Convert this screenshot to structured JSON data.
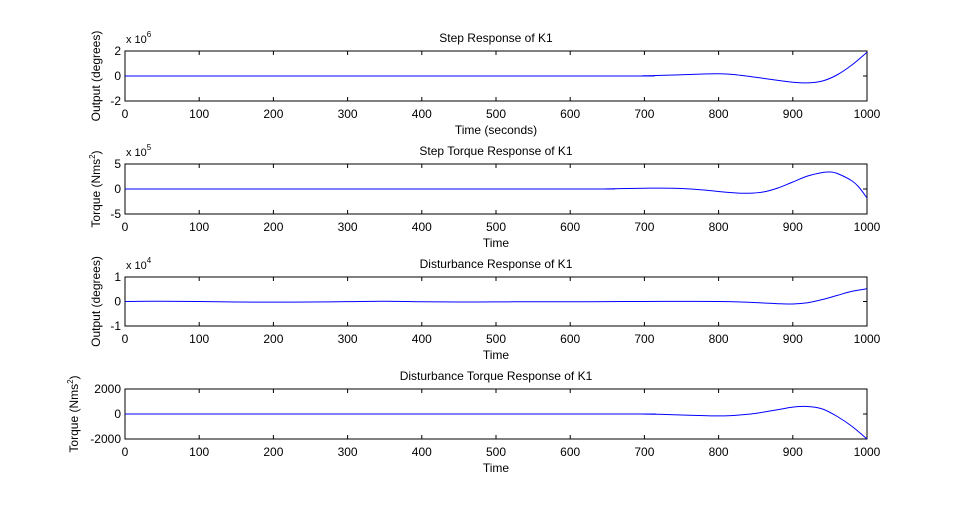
{
  "chart_data": [
    {
      "type": "line",
      "title": "Step Response of K1",
      "xlabel": "Time (seconds)",
      "ylabel": "Output (degrees)",
      "ylabel_sup": "",
      "ylabel_tail": "",
      "multiplier_base": "x 10",
      "multiplier_exp": "6",
      "xlim": [
        0,
        1000
      ],
      "ylim": [
        -2,
        2
      ],
      "xticks": [
        0,
        100,
        200,
        300,
        400,
        500,
        600,
        700,
        800,
        900,
        1000
      ],
      "yticks": [
        -2,
        0,
        2
      ],
      "line_color": "#0000ff",
      "x": [
        0,
        650,
        700,
        750,
        780,
        800,
        820,
        850,
        880,
        900,
        920,
        940,
        960,
        980,
        1000
      ],
      "y": [
        0,
        0,
        0.02,
        0.1,
        0.16,
        0.18,
        0.12,
        -0.1,
        -0.35,
        -0.5,
        -0.55,
        -0.4,
        0.1,
        0.9,
        1.9
      ]
    },
    {
      "type": "line",
      "title": "Step Torque Response of K1",
      "xlabel": "Time",
      "ylabel": "Torque (Nms",
      "ylabel_sup": "2",
      "ylabel_tail": ")",
      "multiplier_base": "x 10",
      "multiplier_exp": "5",
      "xlim": [
        0,
        1000
      ],
      "ylim": [
        -5,
        5
      ],
      "xticks": [
        0,
        100,
        200,
        300,
        400,
        500,
        600,
        700,
        800,
        900,
        1000
      ],
      "yticks": [
        -5,
        0,
        5
      ],
      "line_color": "#0000ff",
      "x": [
        0,
        600,
        650,
        700,
        720,
        750,
        780,
        800,
        820,
        840,
        860,
        880,
        900,
        920,
        940,
        950,
        960,
        980,
        990,
        1000
      ],
      "y": [
        0,
        0,
        0.03,
        0.15,
        0.18,
        0.1,
        -0.2,
        -0.5,
        -0.75,
        -0.85,
        -0.6,
        0.2,
        1.4,
        2.6,
        3.3,
        3.4,
        3.1,
        1.6,
        0.2,
        -1.8
      ]
    },
    {
      "type": "line",
      "title": "Disturbance Response of K1",
      "xlabel": "Time",
      "ylabel": "Output (degrees)",
      "ylabel_sup": "",
      "ylabel_tail": "",
      "multiplier_base": "x 10",
      "multiplier_exp": "4",
      "xlim": [
        0,
        1000
      ],
      "ylim": [
        -1,
        1
      ],
      "xticks": [
        0,
        100,
        200,
        300,
        400,
        500,
        600,
        700,
        800,
        900,
        1000
      ],
      "yticks": [
        -1,
        0,
        1
      ],
      "line_color": "#0000ff",
      "x": [
        0,
        50,
        100,
        150,
        200,
        250,
        300,
        350,
        400,
        450,
        500,
        550,
        600,
        650,
        700,
        750,
        800,
        830,
        860,
        880,
        900,
        920,
        940,
        960,
        980,
        1000
      ],
      "y": [
        0,
        0.01,
        0,
        -0.02,
        -0.025,
        -0.02,
        -0.005,
        0.01,
        -0.01,
        -0.02,
        -0.015,
        -0.01,
        -0.01,
        -0.005,
        0,
        0.005,
        0,
        -0.02,
        -0.06,
        -0.09,
        -0.1,
        -0.05,
        0.08,
        0.25,
        0.42,
        0.52
      ]
    },
    {
      "type": "line",
      "title": "Disturbance Torque Response of K1",
      "xlabel": "Time",
      "ylabel": "Torque (Nms",
      "ylabel_sup": "2",
      "ylabel_tail": ")",
      "multiplier_base": "",
      "multiplier_exp": "",
      "xlim": [
        0,
        1000
      ],
      "ylim": [
        -2000,
        2000
      ],
      "xticks": [
        0,
        100,
        200,
        300,
        400,
        500,
        600,
        700,
        800,
        900,
        1000
      ],
      "yticks": [
        -2000,
        0,
        2000
      ],
      "line_color": "#0000ff",
      "x": [
        0,
        650,
        700,
        720,
        750,
        780,
        800,
        820,
        850,
        880,
        900,
        920,
        940,
        960,
        980,
        1000
      ],
      "y": [
        0,
        0,
        -10,
        -25,
        -80,
        -130,
        -150,
        -120,
        50,
        350,
        550,
        600,
        400,
        -200,
        -1000,
        -2000
      ]
    }
  ]
}
